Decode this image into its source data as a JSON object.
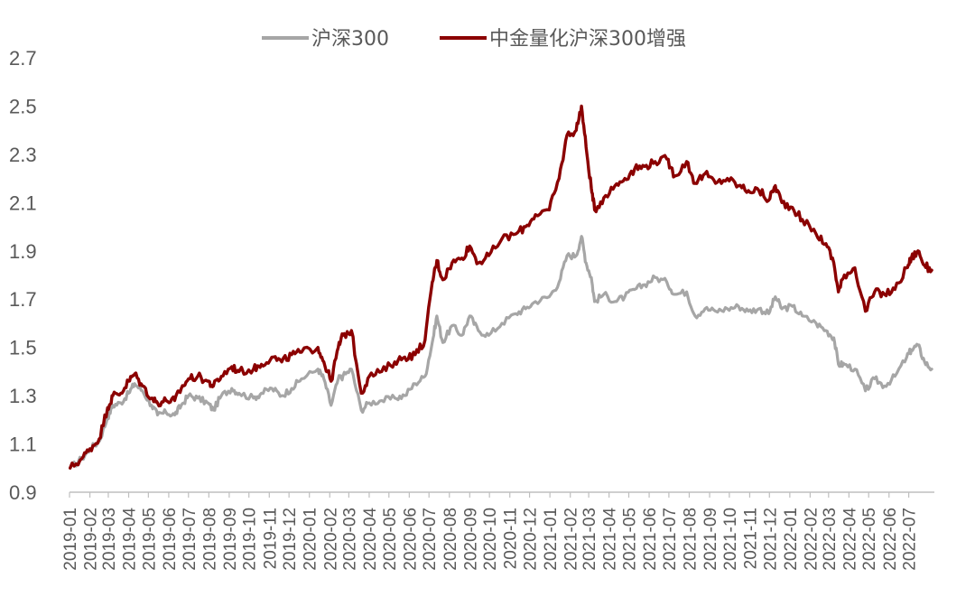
{
  "chart_data": {
    "type": "line",
    "title": "",
    "xlabel": "",
    "ylabel": "",
    "ylim": [
      0.9,
      2.7
    ],
    "yticks": [
      "0.9",
      "1.1",
      "1.3",
      "1.5",
      "1.7",
      "1.9",
      "2.1",
      "2.3",
      "2.5",
      "2.7"
    ],
    "categories": [
      "2019-01",
      "2019-02",
      "2019-03",
      "2019-04",
      "2019-05",
      "2019-06",
      "2019-07",
      "2019-08",
      "2019-09",
      "2019-10",
      "2019-11",
      "2019-12",
      "2020-01",
      "2020-02",
      "2020-03",
      "2020-04",
      "2020-05",
      "2020-06",
      "2020-07",
      "2020-08",
      "2020-09",
      "2020-10",
      "2020-11",
      "2020-12",
      "2021-01",
      "2021-02",
      "2021-03",
      "2021-04",
      "2021-05",
      "2021-06",
      "2021-07",
      "2021-08",
      "2021-09",
      "2021-10",
      "2021-11",
      "2021-12",
      "2022-01",
      "2022-02",
      "2022-03",
      "2022-04",
      "2022-05",
      "2022-06",
      "2022-07"
    ],
    "grid": false,
    "legend_position": "top",
    "series": [
      {
        "name": "沪深300",
        "color": "#a6a6a6",
        "x": [
          "2019-01-02",
          "2019-01-20",
          "2019-02-01",
          "2019-02-15",
          "2019-02-28",
          "2019-03-08",
          "2019-03-20",
          "2019-04-01",
          "2019-04-10",
          "2019-04-22",
          "2019-05-06",
          "2019-05-15",
          "2019-05-28",
          "2019-06-10",
          "2019-06-20",
          "2019-07-01",
          "2019-07-15",
          "2019-07-30",
          "2019-08-08",
          "2019-08-20",
          "2019-09-05",
          "2019-09-16",
          "2019-10-08",
          "2019-10-20",
          "2019-11-05",
          "2019-11-20",
          "2019-12-05",
          "2019-12-20",
          "2020-01-14",
          "2020-01-23",
          "2020-02-03",
          "2020-02-14",
          "2020-02-21",
          "2020-03-05",
          "2020-03-20",
          "2020-04-01",
          "2020-04-20",
          "2020-05-10",
          "2020-05-25",
          "2020-06-10",
          "2020-06-25",
          "2020-07-06",
          "2020-07-13",
          "2020-07-22",
          "2020-08-05",
          "2020-08-20",
          "2020-09-01",
          "2020-09-14",
          "2020-09-30",
          "2020-10-20",
          "2020-11-10",
          "2020-11-25",
          "2020-12-10",
          "2020-12-31",
          "2021-01-15",
          "2021-01-27",
          "2021-02-10",
          "2021-02-18",
          "2021-02-25",
          "2021-03-05",
          "2021-03-10",
          "2021-03-24",
          "2021-04-10",
          "2021-04-25",
          "2021-05-10",
          "2021-05-25",
          "2021-06-10",
          "2021-06-28",
          "2021-07-10",
          "2021-07-28",
          "2021-08-10",
          "2021-08-25",
          "2021-09-10",
          "2021-09-28",
          "2021-10-15",
          "2021-10-30",
          "2021-11-15",
          "2021-11-30",
          "2021-12-10",
          "2021-12-20",
          "2022-01-05",
          "2022-01-20",
          "2022-02-10",
          "2022-02-25",
          "2022-03-09",
          "2022-03-16",
          "2022-03-25",
          "2022-04-10",
          "2022-04-26",
          "2022-05-10",
          "2022-05-25",
          "2022-06-10",
          "2022-06-28",
          "2022-07-05",
          "2022-07-15",
          "2022-07-25",
          "2022-08-05"
        ],
        "y": [
          1.0,
          1.04,
          1.08,
          1.11,
          1.21,
          1.26,
          1.27,
          1.31,
          1.35,
          1.32,
          1.26,
          1.22,
          1.23,
          1.22,
          1.26,
          1.3,
          1.29,
          1.27,
          1.24,
          1.3,
          1.33,
          1.31,
          1.29,
          1.31,
          1.33,
          1.3,
          1.33,
          1.37,
          1.41,
          1.37,
          1.26,
          1.37,
          1.38,
          1.41,
          1.24,
          1.27,
          1.28,
          1.29,
          1.3,
          1.35,
          1.38,
          1.52,
          1.63,
          1.52,
          1.59,
          1.55,
          1.63,
          1.57,
          1.55,
          1.6,
          1.64,
          1.66,
          1.69,
          1.71,
          1.77,
          1.88,
          1.88,
          1.96,
          1.85,
          1.79,
          1.69,
          1.72,
          1.69,
          1.71,
          1.74,
          1.76,
          1.79,
          1.77,
          1.72,
          1.73,
          1.63,
          1.66,
          1.65,
          1.66,
          1.67,
          1.65,
          1.66,
          1.64,
          1.71,
          1.66,
          1.67,
          1.63,
          1.6,
          1.57,
          1.54,
          1.43,
          1.43,
          1.41,
          1.32,
          1.37,
          1.34,
          1.38,
          1.46,
          1.49,
          1.51,
          1.44,
          1.41
        ]
      },
      {
        "name": "中金量化沪深300增强",
        "color": "#8b0000",
        "x": [
          "2019-01-02",
          "2019-01-20",
          "2019-02-01",
          "2019-02-15",
          "2019-02-28",
          "2019-03-08",
          "2019-03-20",
          "2019-04-01",
          "2019-04-10",
          "2019-04-22",
          "2019-05-06",
          "2019-05-15",
          "2019-05-28",
          "2019-06-10",
          "2019-06-20",
          "2019-07-01",
          "2019-07-15",
          "2019-07-30",
          "2019-08-08",
          "2019-08-20",
          "2019-09-05",
          "2019-09-16",
          "2019-10-08",
          "2019-10-20",
          "2019-11-05",
          "2019-11-20",
          "2019-12-05",
          "2019-12-20",
          "2020-01-14",
          "2020-01-23",
          "2020-02-03",
          "2020-02-14",
          "2020-02-21",
          "2020-03-05",
          "2020-03-20",
          "2020-04-01",
          "2020-04-20",
          "2020-05-10",
          "2020-05-25",
          "2020-06-10",
          "2020-06-25",
          "2020-07-06",
          "2020-07-13",
          "2020-07-22",
          "2020-08-05",
          "2020-08-20",
          "2020-09-01",
          "2020-09-14",
          "2020-09-30",
          "2020-10-20",
          "2020-11-10",
          "2020-11-25",
          "2020-12-10",
          "2020-12-31",
          "2021-01-15",
          "2021-01-27",
          "2021-02-10",
          "2021-02-18",
          "2021-02-25",
          "2021-03-05",
          "2021-03-10",
          "2021-03-24",
          "2021-04-10",
          "2021-04-25",
          "2021-05-10",
          "2021-05-25",
          "2021-06-10",
          "2021-06-28",
          "2021-07-10",
          "2021-07-28",
          "2021-08-10",
          "2021-08-25",
          "2021-09-10",
          "2021-09-28",
          "2021-10-15",
          "2021-10-30",
          "2021-11-15",
          "2021-11-30",
          "2021-12-10",
          "2021-12-20",
          "2022-01-05",
          "2022-01-20",
          "2022-02-10",
          "2022-02-25",
          "2022-03-09",
          "2022-03-16",
          "2022-03-25",
          "2022-04-10",
          "2022-04-26",
          "2022-05-10",
          "2022-05-25",
          "2022-06-10",
          "2022-06-28",
          "2022-07-05",
          "2022-07-15",
          "2022-07-25",
          "2022-08-05"
        ],
        "y": [
          1.0,
          1.04,
          1.08,
          1.12,
          1.25,
          1.3,
          1.31,
          1.36,
          1.39,
          1.34,
          1.29,
          1.27,
          1.28,
          1.28,
          1.33,
          1.37,
          1.38,
          1.36,
          1.34,
          1.38,
          1.42,
          1.4,
          1.41,
          1.43,
          1.46,
          1.44,
          1.47,
          1.48,
          1.5,
          1.44,
          1.36,
          1.5,
          1.55,
          1.57,
          1.31,
          1.38,
          1.4,
          1.44,
          1.46,
          1.47,
          1.53,
          1.77,
          1.86,
          1.78,
          1.85,
          1.87,
          1.92,
          1.85,
          1.88,
          1.95,
          1.97,
          2.0,
          2.05,
          2.07,
          2.2,
          2.38,
          2.4,
          2.5,
          2.33,
          2.16,
          2.07,
          2.12,
          2.17,
          2.2,
          2.24,
          2.25,
          2.27,
          2.28,
          2.21,
          2.27,
          2.18,
          2.22,
          2.18,
          2.2,
          2.17,
          2.15,
          2.15,
          2.11,
          2.17,
          2.1,
          2.08,
          2.03,
          1.97,
          1.93,
          1.85,
          1.73,
          1.8,
          1.83,
          1.65,
          1.73,
          1.72,
          1.74,
          1.83,
          1.87,
          1.9,
          1.84,
          1.82
        ]
      }
    ]
  }
}
